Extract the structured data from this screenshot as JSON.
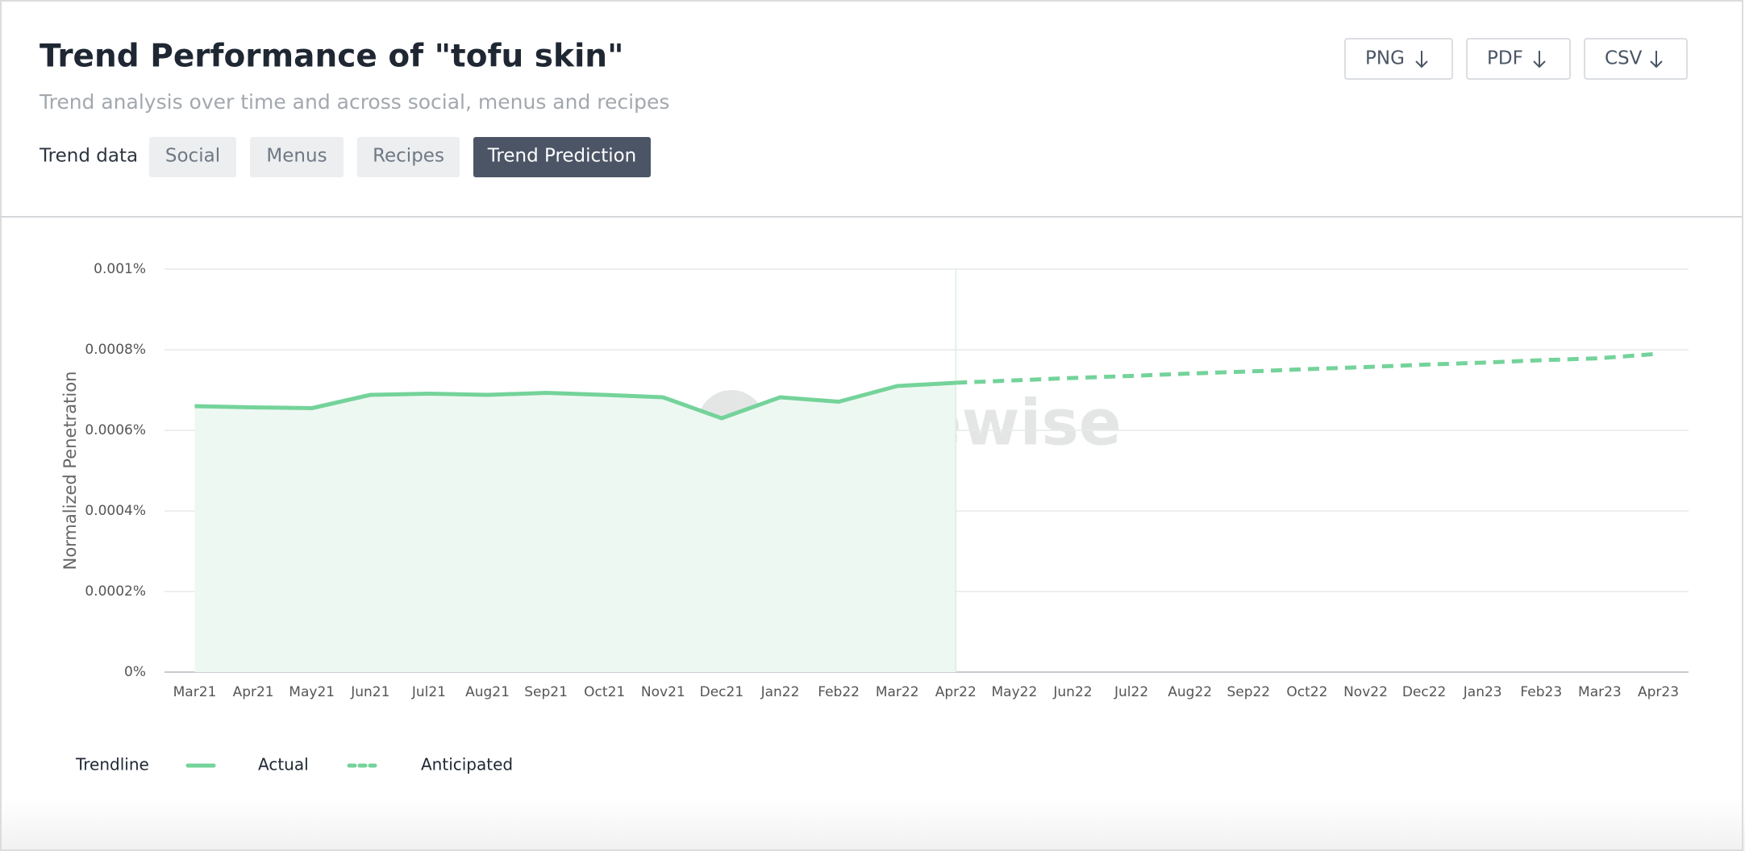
{
  "header": {
    "title": "Trend Performance of \"tofu skin\"",
    "subtitle": "Trend analysis over time and across social, menus and recipes",
    "export_buttons": [
      "PNG",
      "PDF",
      "CSV"
    ],
    "filter_label": "Trend data",
    "filters": [
      {
        "label": "Social",
        "active": false
      },
      {
        "label": "Menus",
        "active": false
      },
      {
        "label": "Recipes",
        "active": false
      },
      {
        "label": "Trend Prediction",
        "active": true
      }
    ]
  },
  "chart_data": {
    "type": "line",
    "watermark": "tastewise",
    "y_label": "Normalized Penetration",
    "categories": [
      "Mar21",
      "Apr21",
      "May21",
      "Jun21",
      "Jul21",
      "Aug21",
      "Sep21",
      "Oct21",
      "Nov21",
      "Dec21",
      "Jan22",
      "Feb22",
      "Mar22",
      "Apr22",
      "May22",
      "Jun22",
      "Jul22",
      "Aug22",
      "Sep22",
      "Oct22",
      "Nov22",
      "Dec22",
      "Jan23",
      "Feb23",
      "Mar23",
      "Apr23"
    ],
    "series": [
      {
        "name": "Actual",
        "color": "#74d39a",
        "style": "solid",
        "area": true,
        "values": [
          0.00066,
          0.000657,
          0.000655,
          0.000688,
          0.000691,
          0.000688,
          0.000693,
          0.000688,
          0.000682,
          0.00063,
          0.000682,
          0.000671,
          0.00071,
          0.000718,
          null,
          null,
          null,
          null,
          null,
          null,
          null,
          null,
          null,
          null,
          null,
          null
        ]
      },
      {
        "name": "Anticipated",
        "color": "#74d39a",
        "style": "dashed",
        "area": false,
        "values": [
          null,
          null,
          null,
          null,
          null,
          null,
          null,
          null,
          null,
          null,
          null,
          null,
          null,
          0.000718,
          0.000724,
          0.00073,
          0.000735,
          0.000741,
          0.000746,
          0.000752,
          0.000757,
          0.000763,
          0.000768,
          0.000774,
          0.000779,
          0.00079
        ]
      }
    ],
    "legend_title": "Trendline",
    "ylim": [
      0,
      0.001
    ],
    "yticks": [
      {
        "value": 0,
        "label": "0%"
      },
      {
        "value": 0.0002,
        "label": "0.0002%"
      },
      {
        "value": 0.0004,
        "label": "0.0004%"
      },
      {
        "value": 0.0006,
        "label": "0.0006%"
      },
      {
        "value": 0.0008,
        "label": "0.0008%"
      },
      {
        "value": 0.001,
        "label": "0.001%"
      }
    ],
    "grid": true
  }
}
